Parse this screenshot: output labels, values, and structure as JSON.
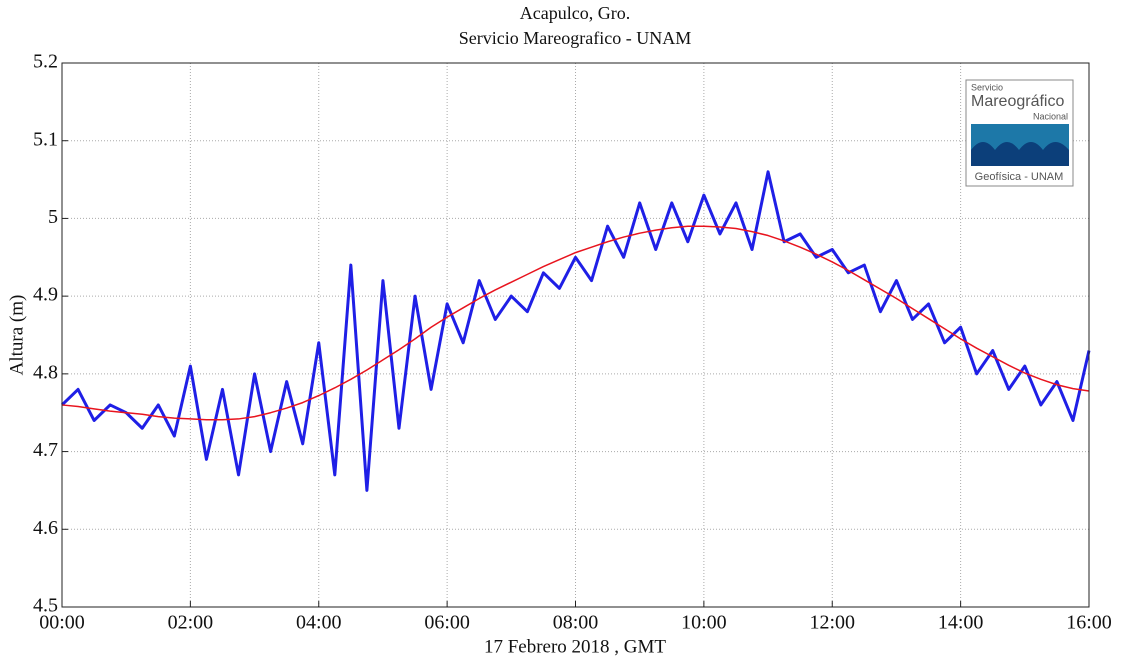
{
  "chart_data": {
    "type": "line",
    "title": "Acapulco, Gro.",
    "subtitle": "Servicio Mareografico - UNAM",
    "x_label": "17 Febrero 2018 , GMT",
    "y_label": "Altura (m)",
    "x": [
      0,
      0.25,
      0.5,
      0.75,
      1,
      1.25,
      1.5,
      1.75,
      2,
      2.25,
      2.5,
      2.75,
      3,
      3.25,
      3.5,
      3.75,
      4,
      4.25,
      4.5,
      4.75,
      5,
      5.25,
      5.5,
      5.75,
      6,
      6.25,
      6.5,
      6.75,
      7,
      7.25,
      7.5,
      7.75,
      8,
      8.25,
      8.5,
      8.75,
      9,
      9.25,
      9.5,
      9.75,
      10,
      10.25,
      10.5,
      10.75,
      11,
      11.25,
      11.5,
      11.75,
      12,
      12.25,
      12.5,
      12.75,
      13,
      13.25,
      13.5,
      13.75,
      14,
      14.25,
      14.5,
      14.75,
      15,
      15.25,
      15.5,
      15.75,
      16
    ],
    "series": [
      {
        "color": "#1f1fe6",
        "values": [
          4.76,
          4.78,
          4.74,
          4.76,
          4.75,
          4.73,
          4.76,
          4.72,
          4.81,
          4.69,
          4.78,
          4.67,
          4.8,
          4.7,
          4.79,
          4.71,
          4.84,
          4.67,
          4.94,
          4.65,
          4.92,
          4.73,
          4.9,
          4.78,
          4.89,
          4.84,
          4.92,
          4.87,
          4.9,
          4.88,
          4.93,
          4.91,
          4.95,
          4.92,
          4.99,
          4.95,
          5.02,
          4.96,
          5.02,
          4.97,
          5.03,
          4.98,
          5.02,
          4.96,
          5.06,
          4.97,
          4.98,
          4.95,
          4.96,
          4.93,
          4.94,
          4.88,
          4.92,
          4.87,
          4.89,
          4.84,
          4.86,
          4.8,
          4.83,
          4.78,
          4.81,
          4.76,
          4.79,
          4.74,
          4.83
        ]
      },
      {
        "color": "#e8141e",
        "values": [
          4.76,
          4.758,
          4.755,
          4.752,
          4.75,
          4.748,
          4.745,
          4.743,
          4.742,
          4.741,
          4.741,
          4.742,
          4.745,
          4.75,
          4.756,
          4.763,
          4.772,
          4.782,
          4.793,
          4.805,
          4.818,
          4.831,
          4.845,
          4.86,
          4.873,
          4.885,
          4.897,
          4.908,
          4.918,
          4.928,
          4.938,
          4.947,
          4.956,
          4.963,
          4.97,
          4.976,
          4.981,
          4.985,
          4.988,
          4.99,
          4.99,
          4.989,
          4.987,
          4.983,
          4.978,
          4.971,
          4.963,
          4.954,
          4.944,
          4.933,
          4.921,
          4.909,
          4.897,
          4.884,
          4.871,
          4.858,
          4.845,
          4.833,
          4.822,
          4.811,
          4.801,
          4.793,
          4.786,
          4.781,
          4.778
        ]
      }
    ],
    "xlim": [
      0,
      16
    ],
    "xticks": [
      {
        "value": 0,
        "label": "00:00"
      },
      {
        "value": 2,
        "label": "02:00"
      },
      {
        "value": 4,
        "label": "04:00"
      },
      {
        "value": 6,
        "label": "06:00"
      },
      {
        "value": 8,
        "label": "08:00"
      },
      {
        "value": 10,
        "label": "10:00"
      },
      {
        "value": 12,
        "label": "12:00"
      },
      {
        "value": 14,
        "label": "14:00"
      },
      {
        "value": 16,
        "label": "16:00"
      }
    ],
    "ylim": [
      4.5,
      5.2
    ],
    "yticks": [
      4.5,
      4.6,
      4.7,
      4.8,
      4.9,
      5,
      5.1,
      5.2
    ],
    "grid": true
  },
  "logo": {
    "line1": "Servicio",
    "line2": "Mareográfico",
    "line3": "Nacional",
    "line4": "Geofísica - UNAM"
  }
}
